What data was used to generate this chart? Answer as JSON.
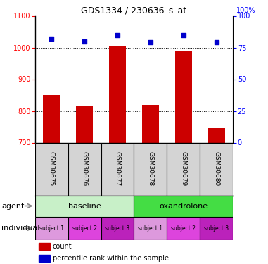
{
  "title": "GDS1334 / 230636_s_at",
  "samples": [
    "GSM30675",
    "GSM30676",
    "GSM30677",
    "GSM30678",
    "GSM30679",
    "GSM30680"
  ],
  "bar_values": [
    850,
    815,
    1003,
    818,
    988,
    745
  ],
  "scatter_values": [
    82,
    80,
    85,
    79,
    85,
    79
  ],
  "ylim_left": [
    700,
    1100
  ],
  "ylim_right": [
    0,
    100
  ],
  "bar_color": "#cc0000",
  "scatter_color": "#0000cc",
  "yticks_left": [
    700,
    800,
    900,
    1000,
    1100
  ],
  "yticks_right": [
    0,
    25,
    50,
    75,
    100
  ],
  "agent_labels": [
    "baseline",
    "oxandrolone"
  ],
  "agent_color_light": "#c8f0c8",
  "agent_color_dark": "#44dd44",
  "sample_box_color": "#d4d4d4",
  "indiv_colors": [
    "#cc88cc",
    "#cc44cc",
    "#aa22aa",
    "#cc88cc",
    "#cc44cc",
    "#aa22aa"
  ]
}
